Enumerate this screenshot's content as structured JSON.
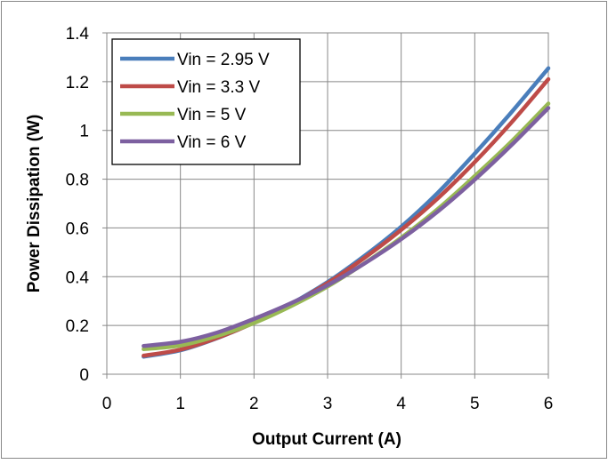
{
  "chart_data": {
    "type": "line",
    "title": "",
    "xlabel": "Output Current (A)",
    "ylabel": "Power Dissipation (W)",
    "xlim": [
      0,
      6
    ],
    "ylim": [
      0,
      1.4
    ],
    "xticks": [
      "0",
      "1",
      "2",
      "3",
      "4",
      "5",
      "6"
    ],
    "yticks": [
      "0",
      "0.2",
      "0.4",
      "0.6",
      "0.8",
      "1",
      "1.2",
      "1.4"
    ],
    "grid": true,
    "legend_position": "top-left",
    "x": [
      0.5,
      1,
      1.5,
      2,
      2.5,
      3,
      3.5,
      4,
      4.5,
      5,
      5.5,
      6
    ],
    "series": [
      {
        "name": "Vin = 2.95 V",
        "color": "#4a7ebb",
        "values": [
          0.072,
          0.098,
          0.148,
          0.212,
          0.288,
          0.378,
          0.485,
          0.605,
          0.745,
          0.905,
          1.075,
          1.255
        ]
      },
      {
        "name": "Vin = 3.3 V",
        "color": "#be4b48",
        "values": [
          0.076,
          0.101,
          0.149,
          0.211,
          0.286,
          0.374,
          0.477,
          0.592,
          0.722,
          0.87,
          1.033,
          1.21
        ]
      },
      {
        "name": "Vin = 5 V",
        "color": "#98b954",
        "values": [
          0.103,
          0.118,
          0.157,
          0.21,
          0.279,
          0.36,
          0.455,
          0.56,
          0.678,
          0.813,
          0.955,
          1.11
        ]
      },
      {
        "name": "Vin = 6 V",
        "color": "#7d60a0",
        "values": [
          0.116,
          0.133,
          0.171,
          0.227,
          0.291,
          0.365,
          0.454,
          0.554,
          0.668,
          0.798,
          0.94,
          1.092
        ]
      }
    ]
  }
}
